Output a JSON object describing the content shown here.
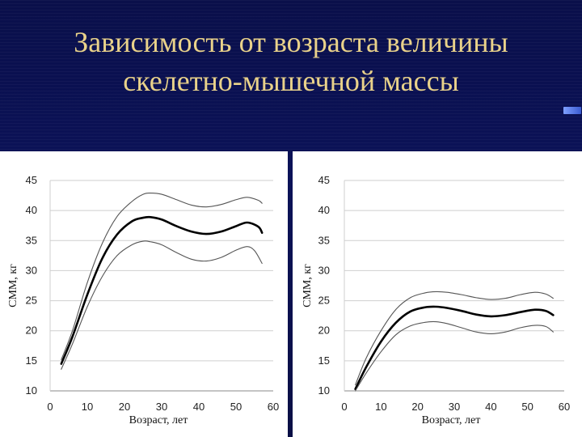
{
  "slide": {
    "title_line1": "Зависимость от возраста величины",
    "title_line2": "скелетно-мышечной массы",
    "title_color": "#e9d28a",
    "background": "#0a1050"
  },
  "chart_data": [
    {
      "type": "line",
      "xlabel": "Возраст, лет",
      "ylabel": "СММ, кг",
      "xlim": [
        0,
        60
      ],
      "ylim": [
        10,
        45
      ],
      "xticks": [
        "0",
        "10",
        "20",
        "30",
        "40",
        "50",
        "60"
      ],
      "yticks": [
        "10",
        "15",
        "20",
        "25",
        "30",
        "35",
        "40",
        "45"
      ],
      "grid": "horizontal",
      "series": [
        {
          "role": "upper",
          "color": "#555555",
          "points": [
            [
              3,
              15.2
            ],
            [
              6,
              20
            ],
            [
              10,
              28
            ],
            [
              14,
              34.5
            ],
            [
              18,
              39
            ],
            [
              22,
              41.5
            ],
            [
              25,
              42.7
            ],
            [
              27,
              42.9
            ],
            [
              30,
              42.7
            ],
            [
              34,
              41.8
            ],
            [
              38,
              40.9
            ],
            [
              42,
              40.6
            ],
            [
              46,
              41
            ],
            [
              50,
              41.8
            ],
            [
              53,
              42.2
            ],
            [
              56,
              41.7
            ],
            [
              57,
              41.2
            ]
          ]
        },
        {
          "role": "mean",
          "color": "#000000",
          "points": [
            [
              3,
              14.5
            ],
            [
              6,
              19
            ],
            [
              10,
              26
            ],
            [
              14,
              32
            ],
            [
              18,
              36
            ],
            [
              22,
              38.2
            ],
            [
              25,
              38.8
            ],
            [
              27,
              38.9
            ],
            [
              30,
              38.5
            ],
            [
              34,
              37.4
            ],
            [
              38,
              36.5
            ],
            [
              42,
              36.1
            ],
            [
              46,
              36.5
            ],
            [
              50,
              37.4
            ],
            [
              53,
              38
            ],
            [
              56,
              37.3
            ],
            [
              57,
              36.3
            ]
          ]
        },
        {
          "role": "lower",
          "color": "#555555",
          "points": [
            [
              3,
              13.6
            ],
            [
              6,
              17.8
            ],
            [
              10,
              24
            ],
            [
              14,
              29
            ],
            [
              18,
              32.5
            ],
            [
              22,
              34.3
            ],
            [
              25,
              34.9
            ],
            [
              27,
              34.8
            ],
            [
              30,
              34.3
            ],
            [
              34,
              33
            ],
            [
              38,
              31.9
            ],
            [
              42,
              31.6
            ],
            [
              46,
              32.2
            ],
            [
              50,
              33.4
            ],
            [
              53,
              34
            ],
            [
              55,
              33.3
            ],
            [
              57,
              31.2
            ]
          ]
        }
      ]
    },
    {
      "type": "line",
      "xlabel": "Возраст, лет",
      "ylabel": "СММ, кг",
      "xlim": [
        0,
        60
      ],
      "ylim": [
        10,
        45
      ],
      "xticks": [
        "0",
        "10",
        "20",
        "30",
        "40",
        "50",
        "60"
      ],
      "yticks": [
        "10",
        "15",
        "20",
        "25",
        "30",
        "35",
        "40",
        "45"
      ],
      "grid": "horizontal",
      "series": [
        {
          "role": "upper",
          "color": "#555555",
          "points": [
            [
              3,
              11
            ],
            [
              6,
              15.5
            ],
            [
              10,
              20
            ],
            [
              14,
              23.5
            ],
            [
              18,
              25.5
            ],
            [
              22,
              26.3
            ],
            [
              25,
              26.5
            ],
            [
              28,
              26.4
            ],
            [
              32,
              26
            ],
            [
              36,
              25.5
            ],
            [
              40,
              25.2
            ],
            [
              44,
              25.4
            ],
            [
              48,
              26
            ],
            [
              52,
              26.4
            ],
            [
              55,
              26.1
            ],
            [
              57,
              25.4
            ]
          ]
        },
        {
          "role": "mean",
          "color": "#000000",
          "points": [
            [
              3,
              10.3
            ],
            [
              6,
              14
            ],
            [
              10,
              18.2
            ],
            [
              14,
              21.3
            ],
            [
              18,
              23.2
            ],
            [
              22,
              23.9
            ],
            [
              25,
              24
            ],
            [
              28,
              23.8
            ],
            [
              32,
              23.3
            ],
            [
              36,
              22.7
            ],
            [
              40,
              22.4
            ],
            [
              44,
              22.6
            ],
            [
              48,
              23.1
            ],
            [
              52,
              23.5
            ],
            [
              55,
              23.3
            ],
            [
              57,
              22.6
            ]
          ]
        },
        {
          "role": "lower",
          "color": "#555555",
          "points": [
            [
              3,
              10
            ],
            [
              6,
              13
            ],
            [
              10,
              16.5
            ],
            [
              14,
              19.3
            ],
            [
              18,
              20.8
            ],
            [
              22,
              21.4
            ],
            [
              25,
              21.5
            ],
            [
              28,
              21.2
            ],
            [
              32,
              20.5
            ],
            [
              36,
              19.8
            ],
            [
              40,
              19.5
            ],
            [
              44,
              19.8
            ],
            [
              48,
              20.5
            ],
            [
              52,
              20.9
            ],
            [
              55,
              20.7
            ],
            [
              57,
              19.8
            ]
          ]
        }
      ]
    }
  ]
}
